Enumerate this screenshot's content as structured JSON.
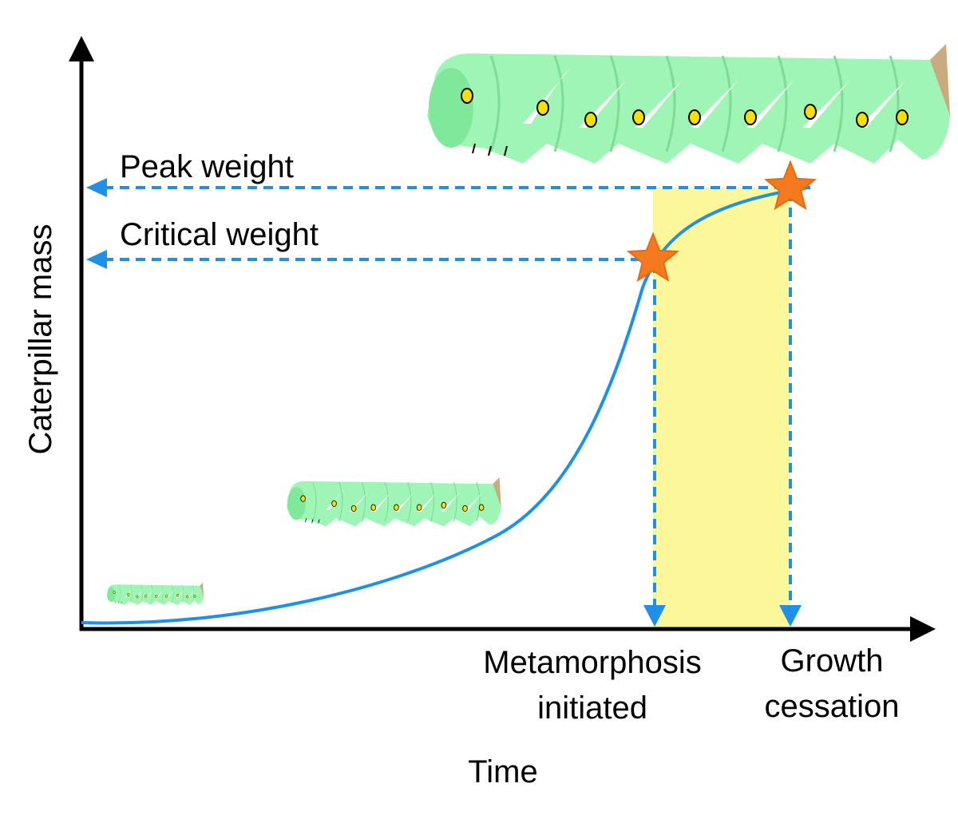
{
  "diagram": {
    "y_axis": {
      "label": "Caterpillar mass"
    },
    "x_axis": {
      "label": "Time"
    },
    "levels": [
      {
        "label": "Peak weight"
      },
      {
        "label": "Critical weight"
      }
    ],
    "events": [
      {
        "lines": [
          "Metamorphosis",
          "initiated"
        ]
      },
      {
        "lines": [
          "Growth",
          "cessation"
        ]
      }
    ]
  }
}
